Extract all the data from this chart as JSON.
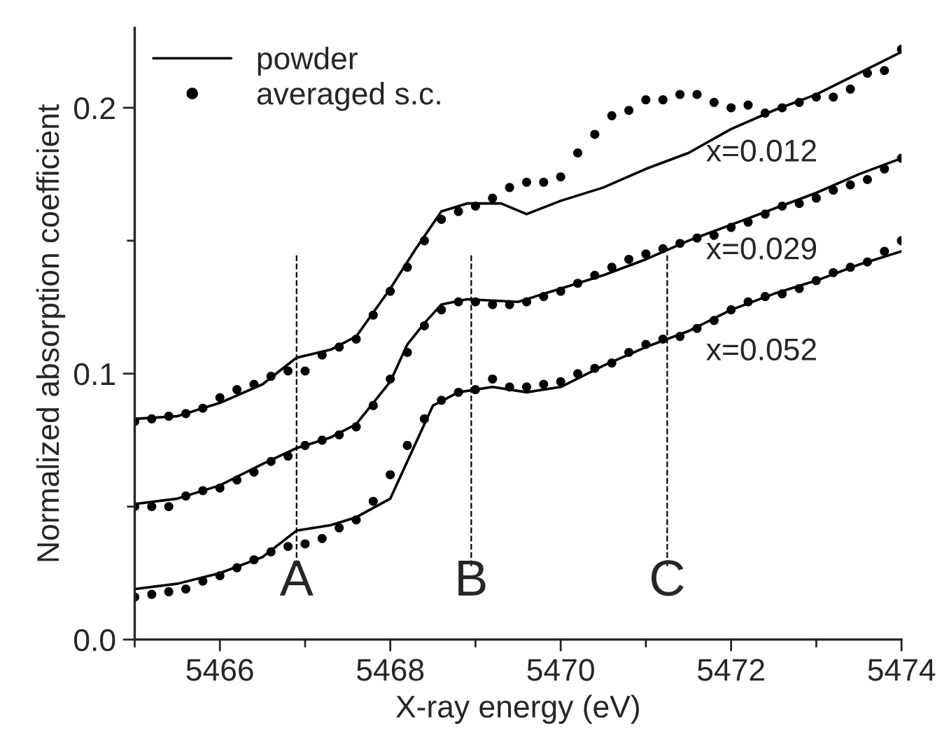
{
  "chart_data": {
    "type": "line",
    "xlabel": "X-ray energy (eV)",
    "ylabel": "Normalized absorption coefficient",
    "xlim": [
      5465,
      5474
    ],
    "ylim": [
      0,
      0.23
    ],
    "xticks": [
      5466,
      5468,
      5470,
      5472,
      5474,
      {
        "value": 5465,
        "label": null
      },
      {
        "value": 5467,
        "label": null
      },
      {
        "value": 5469,
        "label": null
      },
      {
        "value": 5471,
        "label": null
      },
      {
        "value": 5473,
        "label": null
      }
    ],
    "yticks": [
      {
        "value": 0,
        "label": "0.0"
      },
      0.1,
      0.2,
      {
        "value": 0.05,
        "label": null
      },
      {
        "value": 0.15,
        "label": null
      }
    ],
    "grid": false,
    "legend": "top left",
    "line_style": "solid",
    "series": [
      {
        "name": "powder",
        "color": "#000000",
        "x": [
          5465,
          5465.5,
          5466,
          5466.5,
          5466.9,
          5467.3,
          5467.6,
          5468,
          5468.3,
          5468.6,
          5468.9,
          5469.3,
          5469.6,
          5470,
          5470.5,
          5471,
          5471.5,
          5472,
          5472.5,
          5473,
          5473.5,
          5474
        ],
        "values": [
          0.083,
          0.084,
          0.089,
          0.096,
          0.106,
          0.109,
          0.114,
          0.132,
          0.147,
          0.161,
          0.164,
          0.164,
          0.16,
          0.165,
          0.17,
          0.177,
          0.183,
          0.192,
          0.199,
          0.205,
          0.213,
          0.221
        ]
      },
      {
        "type": "scatter",
        "name": "averaged s.c.",
        "color": "#000000",
        "marker": "circle",
        "x": [
          5465,
          5465.2,
          5465.4,
          5465.6,
          5465.8,
          5466,
          5466.2,
          5466.4,
          5466.6,
          5466.8,
          5467,
          5467.2,
          5467.4,
          5467.6,
          5467.8,
          5468,
          5468.2,
          5468.4,
          5468.6,
          5468.8,
          5469,
          5469.2,
          5469.4,
          5469.6,
          5469.8,
          5470,
          5470.2,
          5470.4,
          5470.6,
          5470.8,
          5471,
          5471.2,
          5471.4,
          5471.6,
          5471.8,
          5472,
          5472.2,
          5472.4,
          5472.6,
          5472.8,
          5473,
          5473.2,
          5473.4,
          5473.6,
          5473.8,
          5474
        ],
        "values": [
          0.082,
          0.083,
          0.084,
          0.085,
          0.087,
          0.091,
          0.094,
          0.096,
          0.099,
          0.101,
          0.101,
          0.107,
          0.11,
          0.113,
          0.122,
          0.131,
          0.14,
          0.15,
          0.158,
          0.161,
          0.163,
          0.166,
          0.17,
          0.172,
          0.172,
          0.174,
          0.183,
          0.19,
          0.197,
          0.199,
          0.203,
          0.203,
          0.205,
          0.205,
          0.202,
          0.2,
          0.201,
          0.198,
          0.2,
          0.202,
          0.204,
          0.204,
          0.207,
          0.213,
          0.214,
          0.222
        ]
      },
      {
        "color": "#000000",
        "x": [
          5465,
          5465.5,
          5466,
          5466.5,
          5466.9,
          5467.3,
          5467.6,
          5468,
          5468.2,
          5468.4,
          5468.6,
          5468.9,
          5469.5,
          5470,
          5470.5,
          5471,
          5471.5,
          5472,
          5472.5,
          5473,
          5473.5,
          5474
        ],
        "values": [
          0.051,
          0.053,
          0.058,
          0.066,
          0.072,
          0.076,
          0.081,
          0.097,
          0.111,
          0.119,
          0.126,
          0.128,
          0.127,
          0.132,
          0.137,
          0.143,
          0.15,
          0.156,
          0.162,
          0.168,
          0.175,
          0.181
        ]
      },
      {
        "type": "scatter",
        "color": "#000000",
        "marker": "circle",
        "x": [
          5465,
          5465.2,
          5465.4,
          5465.6,
          5465.8,
          5466,
          5466.2,
          5466.4,
          5466.6,
          5466.8,
          5467,
          5467.2,
          5467.4,
          5467.6,
          5467.8,
          5468,
          5468.2,
          5468.4,
          5468.6,
          5468.8,
          5469,
          5469.2,
          5469.4,
          5469.6,
          5469.8,
          5470,
          5470.2,
          5470.4,
          5470.6,
          5470.8,
          5471,
          5471.2,
          5471.4,
          5471.6,
          5471.8,
          5472,
          5472.2,
          5472.4,
          5472.6,
          5472.8,
          5473,
          5473.2,
          5473.4,
          5473.6,
          5473.8,
          5474
        ],
        "values": [
          0.05,
          0.05,
          0.05,
          0.054,
          0.056,
          0.057,
          0.06,
          0.063,
          0.067,
          0.069,
          0.073,
          0.075,
          0.077,
          0.08,
          0.088,
          0.098,
          0.108,
          0.118,
          0.124,
          0.127,
          0.127,
          0.126,
          0.126,
          0.127,
          0.129,
          0.131,
          0.134,
          0.137,
          0.14,
          0.143,
          0.145,
          0.147,
          0.149,
          0.151,
          0.152,
          0.155,
          0.157,
          0.16,
          0.163,
          0.164,
          0.166,
          0.169,
          0.171,
          0.173,
          0.177,
          0.181
        ]
      },
      {
        "color": "#000000",
        "x": [
          5465,
          5465.5,
          5466,
          5466.5,
          5466.9,
          5467.3,
          5467.6,
          5468,
          5468.3,
          5468.5,
          5468.8,
          5469.2,
          5469.6,
          5470,
          5470.5,
          5471,
          5471.5,
          5472,
          5472.5,
          5473,
          5473.5,
          5474
        ],
        "values": [
          0.019,
          0.021,
          0.025,
          0.031,
          0.041,
          0.043,
          0.046,
          0.053,
          0.074,
          0.088,
          0.093,
          0.095,
          0.093,
          0.095,
          0.103,
          0.11,
          0.116,
          0.124,
          0.13,
          0.135,
          0.141,
          0.146
        ]
      },
      {
        "type": "scatter",
        "color": "#000000",
        "marker": "circle",
        "x": [
          5465,
          5465.2,
          5465.4,
          5465.6,
          5465.8,
          5466,
          5466.2,
          5466.4,
          5466.6,
          5466.8,
          5467,
          5467.2,
          5467.4,
          5467.6,
          5467.8,
          5468,
          5468.2,
          5468.4,
          5468.6,
          5468.8,
          5469,
          5469.2,
          5469.4,
          5469.6,
          5469.8,
          5470,
          5470.2,
          5470.4,
          5470.6,
          5470.8,
          5471,
          5471.2,
          5471.4,
          5471.6,
          5471.8,
          5472,
          5472.2,
          5472.4,
          5472.6,
          5472.8,
          5473,
          5473.2,
          5473.4,
          5473.6,
          5473.8,
          5474
        ],
        "values": [
          0.016,
          0.017,
          0.018,
          0.019,
          0.022,
          0.024,
          0.027,
          0.03,
          0.033,
          0.035,
          0.036,
          0.038,
          0.042,
          0.045,
          0.052,
          0.062,
          0.073,
          0.083,
          0.09,
          0.093,
          0.094,
          0.098,
          0.095,
          0.095,
          0.096,
          0.097,
          0.1,
          0.102,
          0.104,
          0.108,
          0.111,
          0.113,
          0.114,
          0.117,
          0.12,
          0.124,
          0.127,
          0.129,
          0.13,
          0.132,
          0.135,
          0.138,
          0.14,
          0.142,
          0.146,
          0.15
        ]
      }
    ],
    "ref_lines": [
      {
        "axis": "x",
        "value": 5466.9,
        "label": "A",
        "line_style": "dashed",
        "color": "#000000"
      },
      {
        "axis": "x",
        "value": 5468.95,
        "label": "B",
        "line_style": "dashed",
        "color": "#000000"
      },
      {
        "axis": "x",
        "value": 5471.25,
        "label": "C",
        "line_style": "dashed",
        "color": "#000000"
      }
    ],
    "annotations": [
      "x=0.012",
      "x=0.029",
      "x=0.052"
    ]
  }
}
